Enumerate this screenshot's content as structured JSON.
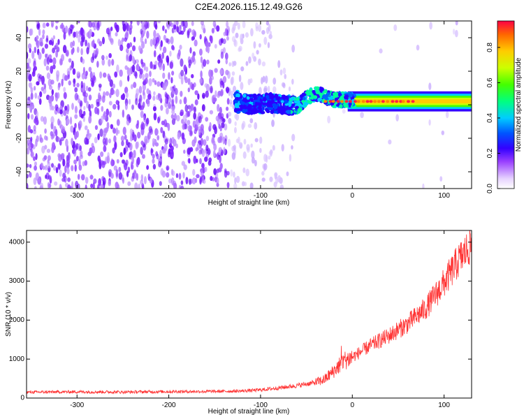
{
  "title": "C2E4.2026.115.12.49.G26",
  "chart_data": [
    {
      "type": "heatmap",
      "name": "spectrogram",
      "xlabel": "Height of straight line (km)",
      "ylabel": "Frequency (Hz)",
      "xlim": [
        -355,
        130
      ],
      "ylim": [
        -50,
        50
      ],
      "xticks": [
        -300,
        -200,
        -100,
        0,
        100
      ],
      "yticks": [
        -40,
        -20,
        0,
        20,
        40
      ],
      "colorbar": {
        "label": "Normalized spectral amplitude",
        "range": [
          0,
          0.95
        ],
        "ticks": [
          0,
          0.2,
          0.4,
          0.6,
          0.8
        ]
      },
      "signal_track": [
        {
          "x": -125,
          "f": 1
        },
        {
          "x": -110,
          "f": 0
        },
        {
          "x": -90,
          "f": 1
        },
        {
          "x": -75,
          "f": 0
        },
        {
          "x": -60,
          "f": -1
        },
        {
          "x": -50,
          "f": 4
        },
        {
          "x": -40,
          "f": 7
        },
        {
          "x": -30,
          "f": 5
        },
        {
          "x": -20,
          "f": 3
        },
        {
          "x": 0,
          "f": 3
        },
        {
          "x": 130,
          "f": 2
        }
      ]
    },
    {
      "type": "line",
      "name": "snr",
      "xlabel": "Height of straight line (km)",
      "ylabel": "SNR (10 * v/v)",
      "xlim": [
        -355,
        130
      ],
      "ylim": [
        0,
        4300
      ],
      "xticks": [
        -300,
        -200,
        -100,
        0,
        100
      ],
      "yticks": [
        0,
        1000,
        2000,
        3000,
        4000
      ],
      "color": "#ff3333",
      "series": [
        {
          "name": "SNR",
          "x": [
            -355,
            -300,
            -250,
            -200,
            -150,
            -120,
            -100,
            -80,
            -60,
            -40,
            -30,
            -20,
            -10,
            0,
            20,
            40,
            60,
            80,
            100,
            115,
            130
          ],
          "values": [
            150,
            160,
            155,
            165,
            170,
            180,
            210,
            260,
            320,
            400,
            480,
            700,
            950,
            1050,
            1350,
            1600,
            1900,
            2300,
            2950,
            3500,
            3950
          ]
        }
      ]
    }
  ]
}
